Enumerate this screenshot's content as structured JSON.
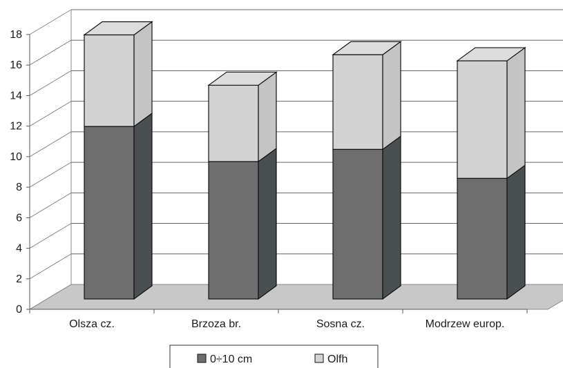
{
  "chart_data": {
    "type": "bar",
    "stacked": true,
    "three_d": true,
    "categories": [
      "Olsza cz.",
      "Brzoza br.",
      "Sosna cz.",
      "Modrzew europ."
    ],
    "series": [
      {
        "name": "0÷10 cm",
        "values": [
          11.3,
          9.0,
          9.8,
          7.9
        ],
        "color": "#6e6e6e"
      },
      {
        "name": "Olfh",
        "values": [
          6.0,
          5.0,
          6.2,
          7.7
        ],
        "color": "#d3d3d3"
      }
    ],
    "title": "",
    "xlabel": "",
    "ylabel": "",
    "ylim": [
      0,
      18
    ],
    "yticks": [
      "0",
      "2",
      "4",
      "6",
      "8",
      "10",
      "12",
      "14",
      "16",
      "18"
    ],
    "grid": true,
    "legend": "bottom"
  }
}
